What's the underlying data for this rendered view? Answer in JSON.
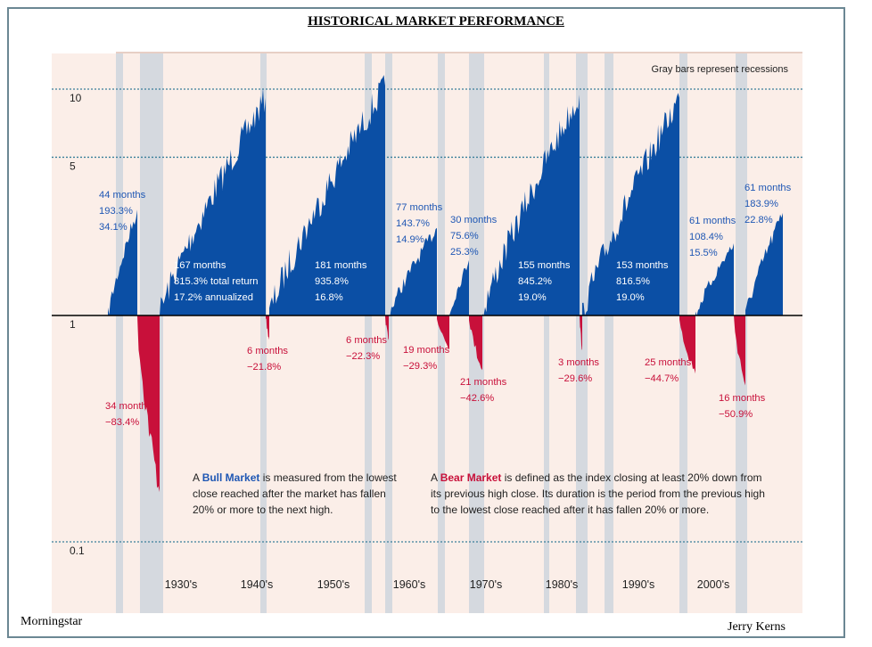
{
  "page": {
    "title": "HISTORICAL MARKET PERFORMANCE",
    "source": "Morningstar",
    "author": "Jerry Kerns"
  },
  "chart_data": {
    "type": "area",
    "yscale": "log",
    "y_ticks": [
      {
        "value": 10,
        "label": "10"
      },
      {
        "value": 5,
        "label": "5"
      },
      {
        "value": 1,
        "label": "1"
      },
      {
        "value": 0.1,
        "label": "0.1"
      }
    ],
    "x_ticks": [
      "1930's",
      "1940's",
      "1950's",
      "1960's",
      "1970's",
      "1980's",
      "1990's",
      "2000's"
    ],
    "recession_note": "Gray bars represent recessions",
    "colors": {
      "bull": "#0b4fa5",
      "bear": "#c8103a",
      "recession": "#d5d9df",
      "background": "#fbeee8"
    },
    "markets": [
      {
        "kind": "bull",
        "lines": [
          "44 months",
          "193.3%",
          "34.1%"
        ]
      },
      {
        "kind": "bear",
        "lines": [
          "34 months",
          "−83.4%"
        ]
      },
      {
        "kind": "bull",
        "lines": [
          "167 months",
          "815.3% total return",
          "17.2% annualized"
        ]
      },
      {
        "kind": "bear",
        "lines": [
          "6 months",
          "−21.8%"
        ]
      },
      {
        "kind": "bull",
        "lines": [
          "181 months",
          "935.8%",
          "16.8%"
        ]
      },
      {
        "kind": "bear",
        "lines": [
          "6 months",
          "−22.3%"
        ]
      },
      {
        "kind": "bull",
        "lines": [
          "77 months",
          "143.7%",
          "14.9%"
        ]
      },
      {
        "kind": "bear",
        "lines": [
          "19 months",
          "−29.3%"
        ]
      },
      {
        "kind": "bull",
        "lines": [
          "30 months",
          "75.6%",
          "25.3%"
        ]
      },
      {
        "kind": "bear",
        "lines": [
          "21 months",
          "−42.6%"
        ]
      },
      {
        "kind": "bull",
        "lines": [
          "155 months",
          "845.2%",
          "19.0%"
        ]
      },
      {
        "kind": "bear",
        "lines": [
          "3 months",
          "−29.6%"
        ]
      },
      {
        "kind": "bull",
        "lines": [
          "153 months",
          "816.5%",
          "19.0%"
        ]
      },
      {
        "kind": "bear",
        "lines": [
          "25 months",
          "−44.7%"
        ]
      },
      {
        "kind": "bull",
        "lines": [
          "61 months",
          "108.4%",
          "15.5%"
        ]
      },
      {
        "kind": "bear",
        "lines": [
          "16 months",
          "−50.9%"
        ]
      },
      {
        "kind": "bull",
        "lines": [
          "61 months",
          "183.9%",
          "22.8%"
        ]
      }
    ],
    "definitions": {
      "bull": {
        "prefix": "A ",
        "term": "Bull Market",
        "lines": [
          " is measured from the lowest",
          "close reached after the market has fallen",
          "20% or more to the next high."
        ]
      },
      "bear": {
        "prefix": "A ",
        "term": "Bear Market",
        "lines": [
          " is defined as the index closing at least 20% down from",
          "its previous high close. Its duration is the period from the previous high",
          "to the lowest close reached after it has fallen 20% or more."
        ]
      }
    }
  }
}
